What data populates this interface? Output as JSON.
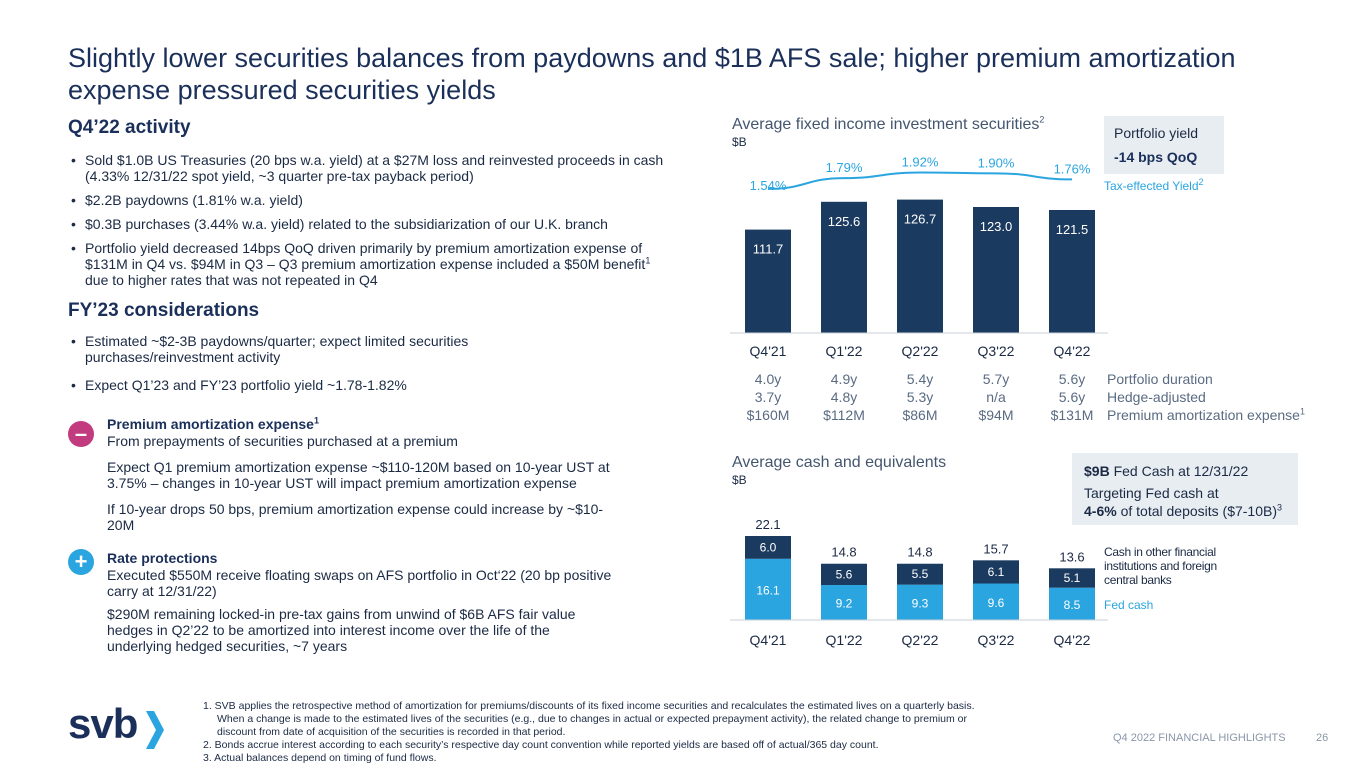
{
  "title": "Slightly lower securities balances from paydowns and $1B AFS sale; higher premium amortization expense pressured securities yields",
  "q4_activity": {
    "heading": "Q4’22 activity",
    "bullets": [
      {
        "text": "Sold $1.0B US Treasuries (20 bps w.a. yield) at a $27M loss and reinvested proceeds in cash (4.33% 12/31/22 spot yield, ~3 quarter pre-tax payback period)"
      },
      {
        "text": "$2.2B paydowns (1.81% w.a. yield)"
      },
      {
        "text": "$0.3B purchases (3.44% w.a. yield) related to the subsidiarization of our U.K. branch"
      },
      {
        "text": "Portfolio yield decreased 14bps QoQ driven primarily by premium amortization expense of $131M in Q4 vs. $94M in Q3 – Q3 premium amortization expense included a $50M benefit",
        "sup": "1",
        "tail": " due to higher rates that was not repeated in Q4"
      }
    ]
  },
  "fy23": {
    "heading": "FY’23 considerations",
    "bullets": [
      {
        "text": "Estimated ~$2-3B paydowns/quarter; expect limited securities purchases/reinvestment activity"
      },
      {
        "text": "Expect Q1’23 and FY’23 portfolio yield ~1.78-1.82%"
      }
    ]
  },
  "premium": {
    "symbol": "–",
    "title": "Premium amortization expense",
    "title_sup": "1",
    "subtitle": "From prepayments of securities purchased at a premium",
    "paragraphs": [
      "Expect Q1 premium amortization expense ~$110-120M based on 10-year UST at 3.75% – changes in 10-year UST will impact premium amortization expense",
      "If 10-year drops 50 bps, premium amortization expense could increase by ~$10-20M"
    ],
    "color": "#c13b7e"
  },
  "rate": {
    "symbol": "+",
    "title": "Rate protections",
    "paragraphs": [
      "Executed $550M receive floating swaps on AFS portfolio in Oct‘22 (20 bp positive carry at 12/31/22)",
      "$290M remaining locked-in pre-tax gains from unwind of $6B AFS fair value hedges in Q2’22 to be amortized into interest income over the life of the underlying hedged securities, ~7 years"
    ],
    "color": "#2aa5e0"
  },
  "chart1_text": {
    "title": "Average fixed income investment securities",
    "title_sup": "2",
    "unit": "$B",
    "yield_box_label": "Portfolio yield",
    "yield_box_value": "-14 bps QoQ",
    "yield_legend": "Tax-effected Yield",
    "yield_legend_sup": "2",
    "metrics": [
      {
        "label": "Portfolio duration",
        "values": [
          "4.0y",
          "4.9y",
          "5.4y",
          "5.7y",
          "5.6y"
        ]
      },
      {
        "label": "Hedge-adjusted",
        "values": [
          "3.7y",
          "4.8y",
          "5.3y",
          "n/a",
          "5.6y"
        ]
      },
      {
        "label": "Premium amortization expense",
        "label_sup": "1",
        "values": [
          "$160M",
          "$112M",
          "$86M",
          "$94M",
          "$131M"
        ]
      }
    ]
  },
  "chart2_text": {
    "title": "Average cash and equivalents",
    "unit": "$B",
    "box_line1_bold": "$9B",
    "box_line1_rest": " Fed Cash at 12/31/22",
    "box_line2": "Targeting Fed cash at",
    "box_line3_bold": "4-6%",
    "box_line3_rest": " of total deposits ($7-10B)",
    "box_line3_sup": "3",
    "legend_other": "Cash in other financial institutions and foreign central banks",
    "legend_fed": "Fed cash"
  },
  "chart_data": [
    {
      "type": "bar",
      "title": "Average fixed income investment securities",
      "ylabel": "$B",
      "categories": [
        "Q4'21",
        "Q1'22",
        "Q2'22",
        "Q3'22",
        "Q4'22"
      ],
      "values": [
        111.7,
        125.6,
        126.7,
        123.0,
        121.5
      ],
      "value_labels": [
        "111.7",
        "125.6",
        "126.7",
        "123.0",
        "121.5"
      ],
      "ylim": [
        60,
        135
      ],
      "bar_color": "#1b3a5f",
      "overlay_line": {
        "name": "Tax-effected Yield",
        "values": [
          1.54,
          1.79,
          1.92,
          1.9,
          1.76
        ],
        "labels": [
          "1.54%",
          "1.79%",
          "1.92%",
          "1.90%",
          "1.76%"
        ],
        "color": "#2aa5e0"
      }
    },
    {
      "type": "bar",
      "stacked": true,
      "title": "Average cash and equivalents",
      "ylabel": "$B",
      "categories": [
        "Q4'21",
        "Q1'22",
        "Q2'22",
        "Q3'22",
        "Q4'22"
      ],
      "ylim": [
        0,
        22.1
      ],
      "series": [
        {
          "name": "Fed cash",
          "values": [
            16.1,
            9.2,
            9.3,
            9.6,
            8.5
          ],
          "labels": [
            "16.1",
            "9.2",
            "9.3",
            "9.6",
            "8.5"
          ],
          "color": "#2aa5e0"
        },
        {
          "name": "Cash in other financial institutions and foreign central banks",
          "values": [
            6.0,
            5.6,
            5.5,
            6.1,
            5.1
          ],
          "labels": [
            "6.0",
            "5.6",
            "5.5",
            "6.1",
            "5.1"
          ],
          "color": "#1b3a5f"
        }
      ],
      "totals": [
        22.1,
        14.8,
        14.8,
        15.7,
        13.6
      ],
      "total_labels": [
        "22.1",
        "14.8",
        "14.8",
        "15.7",
        "13.6"
      ]
    }
  ],
  "footnotes": [
    "1.  SVB applies the retrospective method of amortization for premiums/discounts of its fixed income securities and recalculates the estimated lives on a quarterly basis.",
    "When a change is made to the estimated lives of the securities (e.g., due to changes in actual or expected prepayment activity), the related change to premium or",
    "discount from date of acquisition of the securities is recorded in that period.",
    "2. Bonds accrue interest according to each security’s respective day count convention while reported yields are based off of actual/365 day count.",
    "3. Actual balances depend on timing of fund flows."
  ],
  "logo_text": "svb",
  "footer_label": "Q4 2022 FINANCIAL HIGHLIGHTS",
  "page_number": "26"
}
